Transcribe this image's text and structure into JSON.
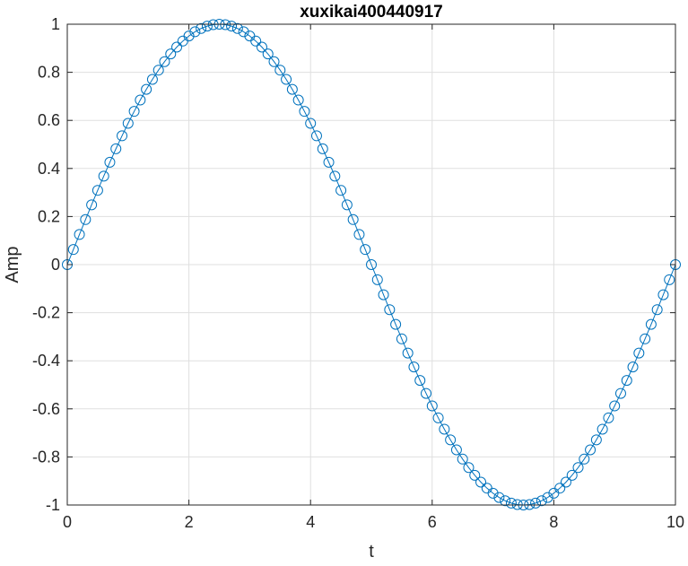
{
  "chart_data": {
    "type": "line",
    "title": "xuxikai400440917",
    "xlabel": "t",
    "ylabel": "Amp",
    "xlim": [
      0,
      10
    ],
    "ylim": [
      -1,
      1
    ],
    "grid": true,
    "legend": "none",
    "x_ticks": [
      0,
      2,
      4,
      6,
      8,
      10
    ],
    "x_tick_labels": [
      "0",
      "2",
      "4",
      "6",
      "8",
      "10"
    ],
    "y_ticks": [
      1,
      0.8,
      0.6,
      0.4,
      0.2,
      0,
      -0.2,
      -0.4,
      -0.6,
      -0.8,
      -1
    ],
    "y_tick_labels": [
      "1",
      "0.8",
      "0.6",
      "0.4",
      "0.2",
      "0",
      "-0.2",
      "-0.4",
      "-0.6",
      "-0.8",
      "-1"
    ],
    "series": [
      {
        "color": "#0072bd",
        "marker": "circle",
        "x": [
          0,
          0.1,
          0.2,
          0.3,
          0.4,
          0.5,
          0.6,
          0.7,
          0.8,
          0.9,
          1,
          1.1,
          1.2,
          1.3,
          1.4,
          1.5,
          1.6,
          1.7,
          1.8,
          1.9,
          2,
          2.1,
          2.2,
          2.3,
          2.4,
          2.5,
          2.6,
          2.7,
          2.8,
          2.9,
          3,
          3.1,
          3.2,
          3.3,
          3.4,
          3.5,
          3.6,
          3.7,
          3.8,
          3.9,
          4,
          4.1,
          4.2,
          4.3,
          4.4,
          4.5,
          4.6,
          4.7,
          4.8,
          4.9,
          5,
          5.1,
          5.2,
          5.3,
          5.4,
          5.5,
          5.6,
          5.7,
          5.8,
          5.9,
          6,
          6.1,
          6.2,
          6.3,
          6.4,
          6.5,
          6.6,
          6.7,
          6.8,
          6.9,
          7,
          7.1,
          7.2,
          7.3,
          7.4,
          7.5,
          7.6,
          7.7,
          7.8,
          7.9,
          8,
          8.1,
          8.2,
          8.3,
          8.4,
          8.5,
          8.6,
          8.7,
          8.8,
          8.9,
          9,
          9.1,
          9.2,
          9.3,
          9.4,
          9.5,
          9.6,
          9.7,
          9.8,
          9.9,
          10
        ],
        "y": [
          0,
          0.0628,
          0.1253,
          0.1874,
          0.2487,
          0.309,
          0.3681,
          0.4258,
          0.4818,
          0.5358,
          0.5878,
          0.6374,
          0.6845,
          0.729,
          0.7705,
          0.809,
          0.8443,
          0.8763,
          0.9048,
          0.9298,
          0.9511,
          0.9686,
          0.9823,
          0.9921,
          0.998,
          1,
          0.998,
          0.9921,
          0.9823,
          0.9686,
          0.9511,
          0.9298,
          0.9048,
          0.8763,
          0.8443,
          0.809,
          0.7705,
          0.729,
          0.6845,
          0.6374,
          0.5878,
          0.5358,
          0.4818,
          0.4258,
          0.3681,
          0.309,
          0.2487,
          0.1874,
          0.1253,
          0.0628,
          0,
          -0.0628,
          -0.1253,
          -0.1874,
          -0.2487,
          -0.309,
          -0.3681,
          -0.4258,
          -0.4818,
          -0.5358,
          -0.5878,
          -0.6374,
          -0.6845,
          -0.729,
          -0.7705,
          -0.809,
          -0.8443,
          -0.8763,
          -0.9048,
          -0.9298,
          -0.9511,
          -0.9686,
          -0.9823,
          -0.9921,
          -0.998,
          -1,
          -0.998,
          -0.9921,
          -0.9823,
          -0.9686,
          -0.9511,
          -0.9298,
          -0.9048,
          -0.8763,
          -0.8443,
          -0.809,
          -0.7705,
          -0.729,
          -0.6845,
          -0.6374,
          -0.5878,
          -0.5358,
          -0.4818,
          -0.4258,
          -0.3681,
          -0.309,
          -0.2487,
          -0.1874,
          -0.1253,
          -0.0628,
          0
        ]
      }
    ]
  }
}
